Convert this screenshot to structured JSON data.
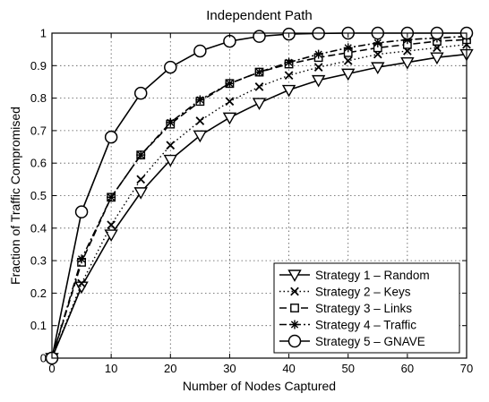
{
  "chart_data": {
    "type": "line",
    "title": "Independent Path",
    "xlabel": "Number of Nodes Captured",
    "ylabel": "Fraction of Traffic Compromised",
    "xlim": [
      0,
      70
    ],
    "ylim": [
      0,
      1
    ],
    "xticks": [
      "0",
      "10",
      "20",
      "30",
      "40",
      "50",
      "60",
      "70"
    ],
    "yticks": [
      "0",
      "0.1",
      "0.2",
      "0.3",
      "0.4",
      "0.5",
      "0.6",
      "0.7",
      "0.8",
      "0.9",
      "1"
    ],
    "grid": true,
    "legend_position": "bottom-right",
    "x": [
      0,
      5,
      10,
      15,
      20,
      25,
      30,
      35,
      40,
      45,
      50,
      55,
      60,
      65,
      70
    ],
    "series": [
      {
        "name": "Strategy 1 – Random",
        "marker": "triangle-down",
        "line_style": "solid",
        "values": [
          0,
          0.22,
          0.38,
          0.51,
          0.61,
          0.685,
          0.74,
          0.785,
          0.825,
          0.855,
          0.875,
          0.895,
          0.91,
          0.925,
          0.935
        ]
      },
      {
        "name": "Strategy 2 – Keys",
        "marker": "x",
        "line_style": "dotted",
        "values": [
          0,
          0.23,
          0.41,
          0.55,
          0.655,
          0.73,
          0.79,
          0.835,
          0.87,
          0.895,
          0.915,
          0.935,
          0.945,
          0.955,
          0.965
        ]
      },
      {
        "name": "Strategy 3 – Links",
        "marker": "square",
        "line_style": "dashed",
        "values": [
          0,
          0.295,
          0.495,
          0.625,
          0.72,
          0.79,
          0.845,
          0.88,
          0.905,
          0.925,
          0.94,
          0.955,
          0.965,
          0.975,
          0.98
        ]
      },
      {
        "name": "Strategy 4 – Traffic",
        "marker": "asterisk",
        "line_style": "dashdot",
        "values": [
          0,
          0.305,
          0.495,
          0.625,
          0.725,
          0.795,
          0.845,
          0.88,
          0.91,
          0.935,
          0.955,
          0.97,
          0.98,
          0.985,
          0.99
        ]
      },
      {
        "name": "Strategy 5 – GNAVE",
        "marker": "circle",
        "line_style": "solid",
        "values": [
          0,
          0.45,
          0.68,
          0.815,
          0.895,
          0.945,
          0.975,
          0.99,
          0.997,
          0.999,
          1,
          1,
          1,
          1,
          1
        ]
      }
    ]
  }
}
